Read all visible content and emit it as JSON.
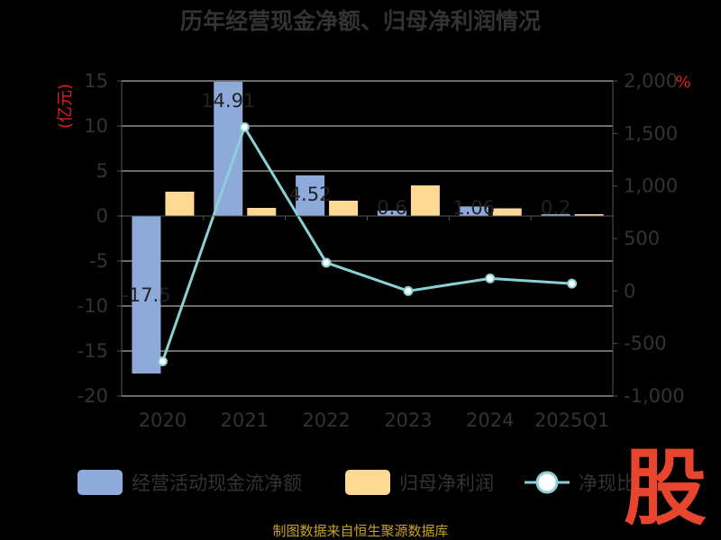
{
  "chart_data": {
    "type": "bar",
    "title": "历年经营现金净额、归母净利润情况",
    "categories": [
      "2020",
      "2021",
      "2022",
      "2023",
      "2024",
      "2025Q1"
    ],
    "y_left": {
      "unit": "(亿元)",
      "min": -20,
      "max": 15,
      "ticks": [
        "15",
        "10",
        "5",
        "0",
        "-5",
        "-10",
        "-15",
        "-20"
      ]
    },
    "y_right": {
      "unit": "%",
      "min": -1000,
      "max": 2000,
      "ticks": [
        "2,000",
        "1,500",
        "1,000",
        "500",
        "0",
        "-500",
        "-1,000"
      ]
    },
    "series": [
      {
        "name": "经营活动现金流净额",
        "type": "bar",
        "axis": "left",
        "color": "#8eaadb",
        "values": [
          -17.5,
          14.91,
          4.52,
          0.6,
          1.06,
          0.2
        ],
        "labels": [
          "-17.5",
          "14.91",
          "4.52",
          "0.6",
          "1.06",
          "0.2"
        ]
      },
      {
        "name": "归母净利润",
        "type": "bar",
        "axis": "left",
        "color": "#ffd993",
        "values": [
          2.7,
          0.9,
          1.7,
          3.4,
          0.85,
          0.2
        ]
      },
      {
        "name": "净现比",
        "type": "line",
        "axis": "right",
        "color": "#8ad1d4",
        "values": [
          -670,
          1560,
          270,
          0,
          120,
          70
        ]
      }
    ],
    "legend_position": "bottom",
    "grid": true
  },
  "source": "制图数据来自恒生聚源数据库",
  "logo_text": "股"
}
